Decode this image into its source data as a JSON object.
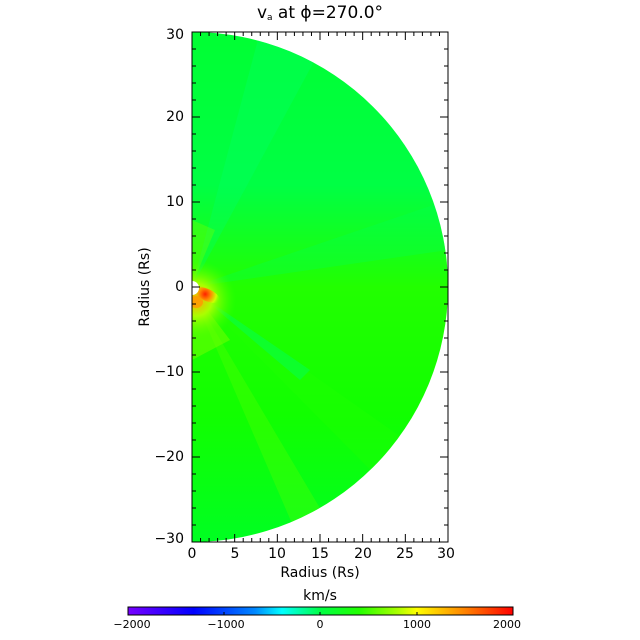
{
  "chart_data": {
    "type": "heatmap",
    "title_main": "v",
    "title_sub": "a",
    "title_rest": " at ϕ=270.0°",
    "xlabel": "Radius (Rs)",
    "ylabel": "Radius (Rs)",
    "xlim": [
      0,
      30
    ],
    "ylim": [
      -30,
      30
    ],
    "x_ticks": [
      "0",
      "5",
      "10",
      "15",
      "20",
      "25",
      "30"
    ],
    "y_ticks": [
      "30",
      "20",
      "10",
      "0",
      "−10",
      "−20",
      "−30"
    ],
    "domain_shape": "half-disk, radius 30 Rs, centered at origin, right half",
    "description": "Velocity field mostly near 0-400 km/s (green) with a hot spot (~1500-2000 km/s, red/orange) just below-right of the inner boundary near (1,-1); faint yellow-green streamers radiate from origin toward lower-right and upper-right; slight cyan-green band upward-right",
    "colorbar": {
      "label": "km/s",
      "range": [
        -2000,
        2000
      ],
      "ticks": [
        "−2000",
        "−1000",
        "0",
        "1000",
        "2000"
      ],
      "colormap": "rainbow (purple-blue-cyan-green-yellow-red)"
    }
  },
  "colors": {
    "field_base": "#00ff33",
    "field_hot": "#ff2200",
    "background": "#ffffff",
    "axis": "#000000"
  }
}
